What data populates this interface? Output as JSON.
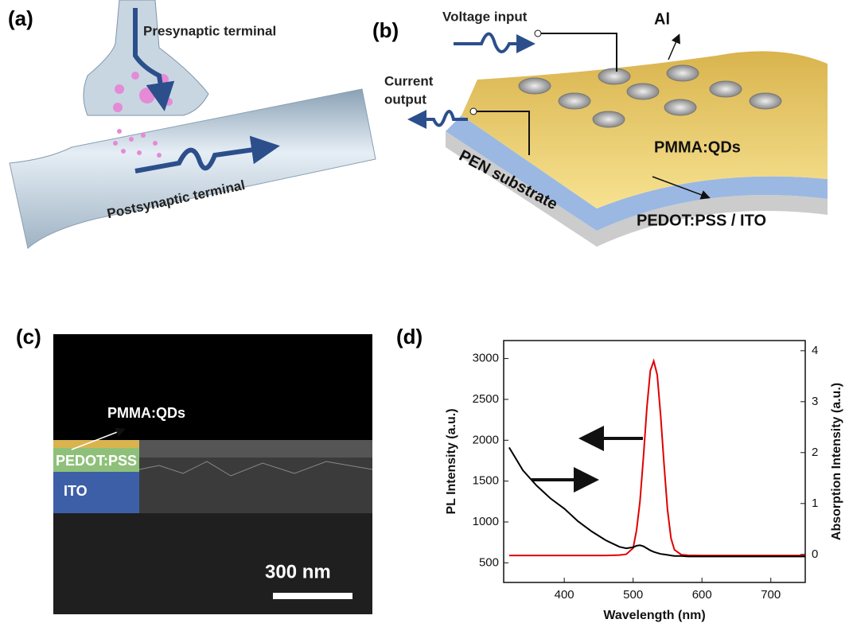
{
  "panels": {
    "a": {
      "label": "(a)",
      "presynaptic": "Presynaptic terminal",
      "postsynaptic": "Postsynaptic terminal"
    },
    "b": {
      "label": "(b)",
      "voltage": "Voltage input",
      "al": "Al",
      "current": [
        "Current",
        "output"
      ],
      "pmma": "PMMA:QDs",
      "pen": "PEN substrate",
      "pedot": "PEDOT:PSS / ITO"
    },
    "c": {
      "label": "(c)",
      "pmma": "PMMA:QDs",
      "pedot": "PEDOT:PSS",
      "ito": "ITO",
      "scale": "300 nm"
    },
    "d": {
      "label": "(d)"
    }
  },
  "chart_data": {
    "type": "line",
    "xlabel": "Wavelength (nm)",
    "ylabel": "PL Intensity (a.u.)",
    "y2label": "Absorption Intensity (a.u.)",
    "x": [
      320,
      340,
      360,
      380,
      400,
      420,
      440,
      460,
      480,
      490,
      500,
      505,
      510,
      515,
      520,
      525,
      530,
      535,
      540,
      545,
      550,
      555,
      560,
      570,
      580,
      600,
      620,
      640,
      660,
      680,
      700,
      720,
      750
    ],
    "series": [
      {
        "color": "#e00000",
        "values": [
          590,
          590,
          590,
          590,
          590,
          590,
          590,
          590,
          595,
          605,
          680,
          900,
          1250,
          1800,
          2400,
          2850,
          2970,
          2800,
          2300,
          1700,
          1150,
          800,
          660,
          600,
          592,
          590,
          590,
          590,
          590,
          590,
          590,
          590,
          590
        ]
      },
      {
        "color": "#000000",
        "axis": "y2",
        "values": [
          2.1,
          1.65,
          1.35,
          1.1,
          0.9,
          0.65,
          0.45,
          0.28,
          0.15,
          0.12,
          0.14,
          0.17,
          0.18,
          0.16,
          0.12,
          0.08,
          0.05,
          0.03,
          0.01,
          0,
          -0.01,
          -0.02,
          -0.03,
          -0.03,
          -0.04,
          -0.04,
          -0.04,
          -0.04,
          -0.04,
          -0.04,
          -0.04,
          -0.04,
          -0.04
        ]
      }
    ],
    "xlim": [
      312,
      750
    ],
    "xticks": [
      400,
      500,
      600,
      700
    ],
    "ylim": [
      260,
      3220
    ],
    "yticks": [
      500,
      1000,
      1500,
      2000,
      2500,
      3000
    ],
    "y2lim": [
      -0.55,
      4.2
    ],
    "y2ticks": [
      0,
      1,
      2,
      3,
      4
    ]
  }
}
